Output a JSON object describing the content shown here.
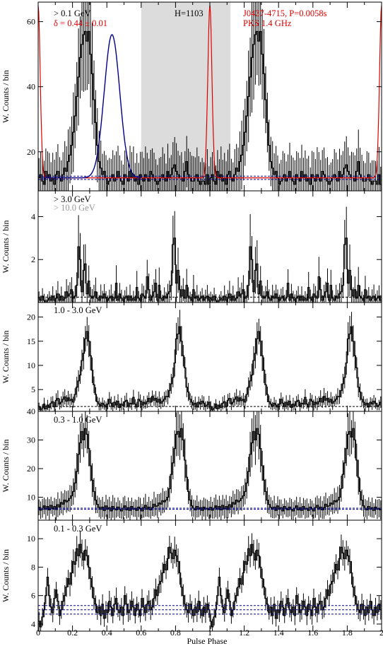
{
  "chart_data": [
    {
      "type": "line",
      "style": "histogram-steps",
      "energy_label": "> 0.1 GeV",
      "delta_label": "δ = 0.44 ± 0.01",
      "h_label": "H=1103",
      "source_label": "J0437-4715, P=0.0058s",
      "radio_label": "PKS 1.4 GHz",
      "ylabel": "W. Counts / bin",
      "ylim": [
        8,
        66
      ],
      "yticks": [
        20,
        40,
        60
      ],
      "background_levels": [
        11.5,
        12.5
      ],
      "offpulse_region": [
        0.6,
        1.12
      ],
      "radio_profile": {
        "peak_phase": 1.0,
        "peak": 65,
        "width": 0.012,
        "base": 12
      },
      "fit_curve": {
        "center": 0.43,
        "amp": 44,
        "width": 0.045,
        "base": 12,
        "range": [
          0.02,
          0.6
        ]
      },
      "colors": {
        "data": "#000000",
        "fit": "#00008b",
        "radio": "#e00000",
        "offpulse": "#dcdcdc"
      },
      "values": [
        12,
        13,
        11,
        10,
        14,
        12,
        13,
        11,
        12,
        10,
        13,
        14,
        12,
        11,
        13,
        15,
        14,
        17,
        19,
        22,
        26,
        31,
        37,
        43,
        49,
        53,
        56,
        57,
        54,
        57,
        50,
        44,
        36,
        29,
        22,
        17,
        15,
        13,
        14,
        12,
        10,
        11,
        12,
        13,
        11,
        12,
        14,
        12,
        11,
        10,
        13,
        12,
        11,
        14,
        12,
        13,
        11,
        12,
        10,
        13,
        12,
        11,
        13,
        12,
        11,
        14,
        13,
        12,
        11,
        10,
        11,
        12,
        13,
        12,
        11,
        14,
        12,
        13,
        15,
        16,
        14,
        13,
        12,
        12,
        11,
        14,
        17,
        13,
        12,
        11,
        11,
        12,
        13,
        11,
        10,
        11,
        11,
        10,
        13,
        10
      ]
    },
    {
      "type": "line",
      "style": "histogram-steps",
      "energy_label": "> 3.0 GeV",
      "energy_label_2": "> 10.0 GeV",
      "ylabel": "W. Counts / bin",
      "ylim": [
        0,
        5.2
      ],
      "yticks": [
        2,
        4
      ],
      "background_levels": [
        0.25
      ],
      "values": [
        0.2,
        0.1,
        0.3,
        0.1,
        0,
        0.1,
        0.2,
        0.1,
        0.3,
        0.1,
        0.2,
        0.4,
        0.1,
        0.3,
        0.1,
        0.2,
        0.5,
        0.3,
        0.4,
        0.6,
        0.2,
        0.3,
        0.8,
        2.6,
        2.0,
        0.5,
        1.5,
        1.8,
        0.4,
        1.0,
        0.3,
        0.2,
        0.3,
        0.5,
        0.2,
        0.1,
        0.3,
        0.2,
        0.4,
        0.2,
        0.1,
        0.2,
        0.3,
        0.1,
        0.2,
        0.9,
        0.1,
        0.4,
        0.2,
        0.1,
        0.2,
        0.3,
        0.1,
        0.3,
        0.1,
        0.2,
        0.1,
        0.7,
        0.2,
        0.1,
        0.4,
        0.3,
        0.2,
        1.2,
        0.6,
        0.1,
        0.3,
        0.5,
        0.9,
        0.1,
        0.8,
        0.2,
        0.1,
        0.3,
        0.2,
        0.4,
        0.5,
        0.8,
        2.7,
        3.0,
        0.9,
        1.5,
        0.6,
        0.3,
        0.6,
        0.2,
        0.8,
        0.3,
        0.2,
        0.1,
        0.6,
        0.2,
        0.3,
        0.1,
        0.2,
        0.3,
        0.1,
        0.2,
        0.3,
        0.1
      ]
    },
    {
      "type": "line",
      "style": "histogram-steps",
      "energy_label": "1.0 - 3.0 GeV",
      "ylabel": "W. Counts / bin",
      "ylim": [
        0.5,
        23
      ],
      "yticks": [
        5,
        10,
        15,
        20
      ],
      "background_levels": [
        1.5
      ],
      "values": [
        1.5,
        0.8,
        1.2,
        2.0,
        1.0,
        1.8,
        1.3,
        2.2,
        2.5,
        1.4,
        2.8,
        3.2,
        2.0,
        2.4,
        3.0,
        3.5,
        2.6,
        3.3,
        2.7,
        3.0,
        2.4,
        4.0,
        5.5,
        6.8,
        8.0,
        11.0,
        12.5,
        15.5,
        17.0,
        15.0,
        12.0,
        9.0,
        6.0,
        4.0,
        2.5,
        2.0,
        1.6,
        2.2,
        1.8,
        1.4,
        2.0,
        3.0,
        2.2,
        1.5,
        2.4,
        1.8,
        2.6,
        1.3,
        2.0,
        1.7,
        2.5,
        2.8,
        1.5,
        2.2,
        2.0,
        3.4,
        2.0,
        1.4,
        3.0,
        2.6,
        1.8,
        2.4,
        2.0,
        2.5,
        3.2,
        2.4,
        3.6,
        2.8,
        3.2,
        2.4,
        3.0,
        2.2,
        2.6,
        3.0,
        3.6,
        3.5,
        4.8,
        6.2,
        7.5,
        10.5,
        15.5,
        16.5,
        18.0,
        15.0,
        12.0,
        9.5,
        5.5,
        4.5,
        3.0,
        2.4,
        1.8,
        2.2,
        1.4,
        2.4,
        2.0,
        2.6,
        2.2,
        1.5,
        1.8,
        2.4
      ]
    },
    {
      "type": "line",
      "style": "histogram-steps",
      "energy_label": "0.3 - 1.0 GeV",
      "ylabel": "W. Counts / bin",
      "ylim": [
        2,
        40
      ],
      "yticks": [
        10,
        20,
        30,
        40
      ],
      "background_levels": [
        5.8,
        6.2
      ],
      "values": [
        6.5,
        5.5,
        6.2,
        7.0,
        5.8,
        6.8,
        5.6,
        7.2,
        6.0,
        6.8,
        5.7,
        7.4,
        6.6,
        8.2,
        7.6,
        9.0,
        8.4,
        8.8,
        9.6,
        10.5,
        12.0,
        15.0,
        19.0,
        25.0,
        29.0,
        33.0,
        30.0,
        34.0,
        32.0,
        27.0,
        21.0,
        16.0,
        12.0,
        9.0,
        7.5,
        6.5,
        5.8,
        6.6,
        5.4,
        7.0,
        5.8,
        6.4,
        5.2,
        6.8,
        6.0,
        5.6,
        6.6,
        5.8,
        5.2,
        6.2,
        7.0,
        5.6,
        6.4,
        5.4,
        6.8,
        5.8,
        6.2,
        5.4,
        6.6,
        6.0,
        5.2,
        6.4,
        7.2,
        5.8,
        6.6,
        5.6,
        6.4,
        7.6,
        6.8,
        7.0,
        8.0,
        7.6,
        8.8,
        8.4,
        9.0,
        10.0,
        13.0,
        18.0,
        22.0,
        27.0,
        32.0,
        33.0,
        31.0,
        34.0,
        30.0,
        23.0,
        17.0,
        12.0,
        9.0,
        7.0,
        6.2,
        5.6,
        6.8,
        5.8,
        6.4,
        5.4,
        6.6,
        5.8,
        6.2,
        5.6
      ]
    },
    {
      "type": "line",
      "style": "histogram-steps",
      "energy_label": "0.1 - 0.3 GeV",
      "ylabel": "W. Counts / bin",
      "xlabel": "Pulse Phase",
      "ylim": [
        3.5,
        11.3
      ],
      "yticks": [
        4,
        6,
        8,
        10
      ],
      "xticks": [
        0,
        0.2,
        0.4,
        0.6,
        0.8,
        1,
        1.2,
        1.4,
        1.6,
        1.8,
        2
      ],
      "xlim": [
        0,
        2
      ],
      "background_levels": [
        4.7,
        5.0,
        5.3
      ],
      "values": [
        4.2,
        3.8,
        4.5,
        5.0,
        6.0,
        7.3,
        6.0,
        5.2,
        4.8,
        5.8,
        6.4,
        5.6,
        4.6,
        5.0,
        5.6,
        6.0,
        6.6,
        7.2,
        6.8,
        7.6,
        8.4,
        8.2,
        9.3,
        8.8,
        9.6,
        9.0,
        8.5,
        9.2,
        8.8,
        8.0,
        7.2,
        6.6,
        5.8,
        5.4,
        4.8,
        5.2,
        4.6,
        5.4,
        4.4,
        5.0,
        4.8,
        5.6,
        5.2,
        4.6,
        5.4,
        5.8,
        5.0,
        4.8,
        5.2,
        4.6,
        6.0,
        5.4,
        4.8,
        5.0,
        5.6,
        5.2,
        4.6,
        5.4,
        5.0,
        4.6,
        5.8,
        5.2,
        4.8,
        5.4,
        5.6,
        5.0,
        5.2,
        5.8,
        6.4,
        6.0,
        6.8,
        7.0,
        7.6,
        8.2,
        7.8,
        8.6,
        9.4,
        9.0,
        8.6,
        9.2,
        8.8,
        8.4,
        7.6,
        6.6,
        6.0,
        5.4,
        5.0,
        4.8,
        5.4,
        5.0,
        4.6,
        5.2,
        4.8,
        5.6,
        5.0,
        4.6,
        5.2,
        4.8,
        5.4,
        5.0
      ]
    }
  ]
}
